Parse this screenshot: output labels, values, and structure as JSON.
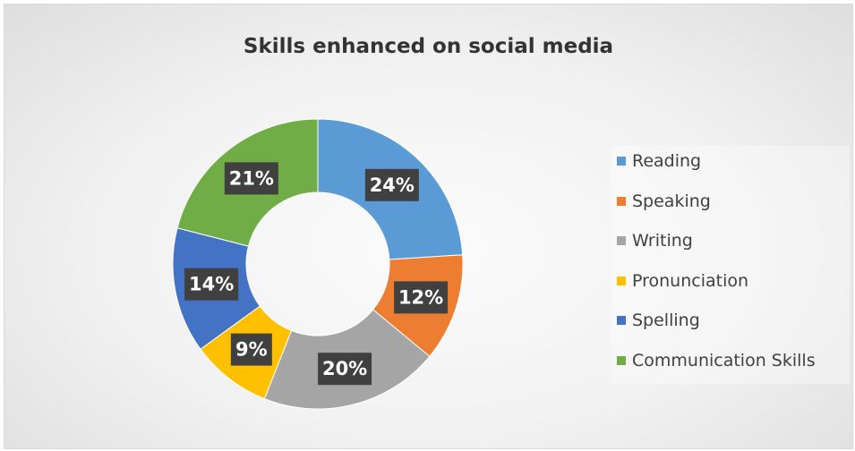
{
  "chart_data": {
    "type": "pie",
    "variant": "donut",
    "title": "Skills enhanced on social media",
    "legend_position": "right",
    "categories": [
      "Reading",
      "Speaking",
      "Writing",
      "Pronunciation",
      "Spelling",
      "Communication Skills"
    ],
    "values": [
      24,
      12,
      20,
      9,
      14,
      21
    ],
    "data_labels": [
      "24%",
      "12%",
      "20%",
      "9%",
      "14%",
      "21%"
    ],
    "colors": [
      "#5B9BD5",
      "#ED7D31",
      "#A5A5A5",
      "#FFC000",
      "#4472C4",
      "#70AD47"
    ],
    "label_box_color": "#404040"
  }
}
